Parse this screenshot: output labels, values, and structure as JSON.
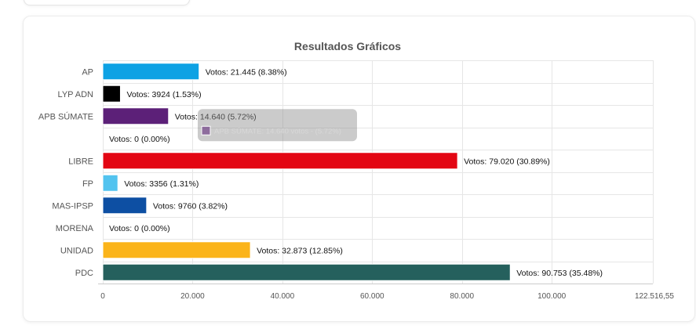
{
  "chart_data": {
    "type": "bar",
    "orientation": "horizontal",
    "title": "Resultados Gráficos",
    "categories": [
      "AP",
      "LYP ADN",
      "APB SÚMATE",
      "",
      "LIBRE",
      "FP",
      "MAS-IPSP",
      "MORENA",
      "UNIDAD",
      "PDC"
    ],
    "values": [
      21445,
      3924,
      14640,
      0,
      79020,
      3356,
      9760,
      0,
      32873,
      90753
    ],
    "colors": [
      "#0ea2e4",
      "#000000",
      "#5c2078",
      "#3a3a3a",
      "#e30613",
      "#52c3ef",
      "#0d4fa3",
      "#5a5a5a",
      "#fbb41a",
      "#25605d"
    ],
    "data_labels": [
      "Votos: 21.445 (8.38%)",
      "Votos: 3924 (1.53%)",
      "Votos: 14.640 (5.72%)",
      "Votos: 0 (0.00%)",
      "Votos: 79.020 (30.89%)",
      "Votos: 3356 (1.31%)",
      "Votos: 9760 (3.82%)",
      "Votos: 0 (0.00%)",
      "Votos: 32.873 (12.85%)",
      "Votos: 90.753 (35.48%)"
    ],
    "xlim": [
      0,
      122516.55
    ],
    "x_ticks": [
      0,
      20000,
      40000,
      60000,
      80000,
      100000,
      122516.55
    ],
    "x_tick_labels": [
      "0",
      "20.000",
      "40.000",
      "60.000",
      "80.000",
      "100.000",
      "122.516,55"
    ],
    "grid": true,
    "tooltip": {
      "category_index": 2,
      "text": "APB SÚMATE: 14.640 votos - (5.72%)",
      "swatch_color": "#5c2078"
    }
  }
}
